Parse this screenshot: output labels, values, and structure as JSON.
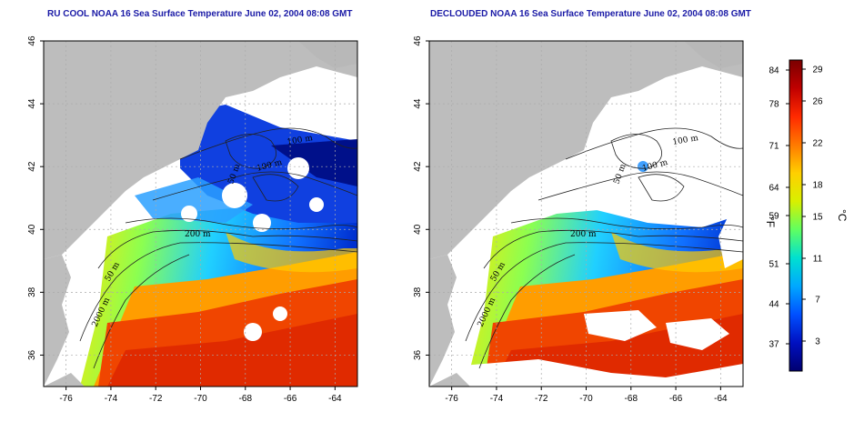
{
  "panels": [
    {
      "title": "RU COOL NOAA 16 Sea Surface Temperature June 02, 2004 08:08 GMT",
      "clouded": true
    },
    {
      "title": "DECLOUDED NOAA 16 Sea Surface Temperature June 02, 2004 08:08 GMT",
      "clouded": false
    }
  ],
  "map": {
    "lon_ticks": [
      "-76",
      "-74",
      "-72",
      "-70",
      "-68",
      "-66",
      "-64"
    ],
    "lat_ticks": [
      "36",
      "38",
      "40",
      "42",
      "44",
      "46"
    ],
    "contour_labels": [
      "100 m",
      "100 m",
      "50 m",
      "200 m",
      "50 m",
      "2000 m"
    ],
    "grid": "dotted",
    "colors": {
      "land": "#bdbdbd",
      "no_data": "#ffffff",
      "contour": "#222222"
    }
  },
  "colorbar": {
    "fahrenheit_label": "°F",
    "celsius_label": "°C",
    "fahrenheit_ticks": [
      "84",
      "78",
      "71",
      "64",
      "59",
      "51",
      "44",
      "37"
    ],
    "celsius_ticks": [
      "29",
      "26",
      "22",
      "18",
      "15",
      "11",
      "7",
      "3"
    ],
    "gradient": [
      "#7a0000",
      "#c00000",
      "#ff2a00",
      "#ff7a00",
      "#ffd000",
      "#d8f000",
      "#60ff60",
      "#00e0d0",
      "#00a8ff",
      "#0050ff",
      "#0010c0",
      "#000070"
    ]
  }
}
